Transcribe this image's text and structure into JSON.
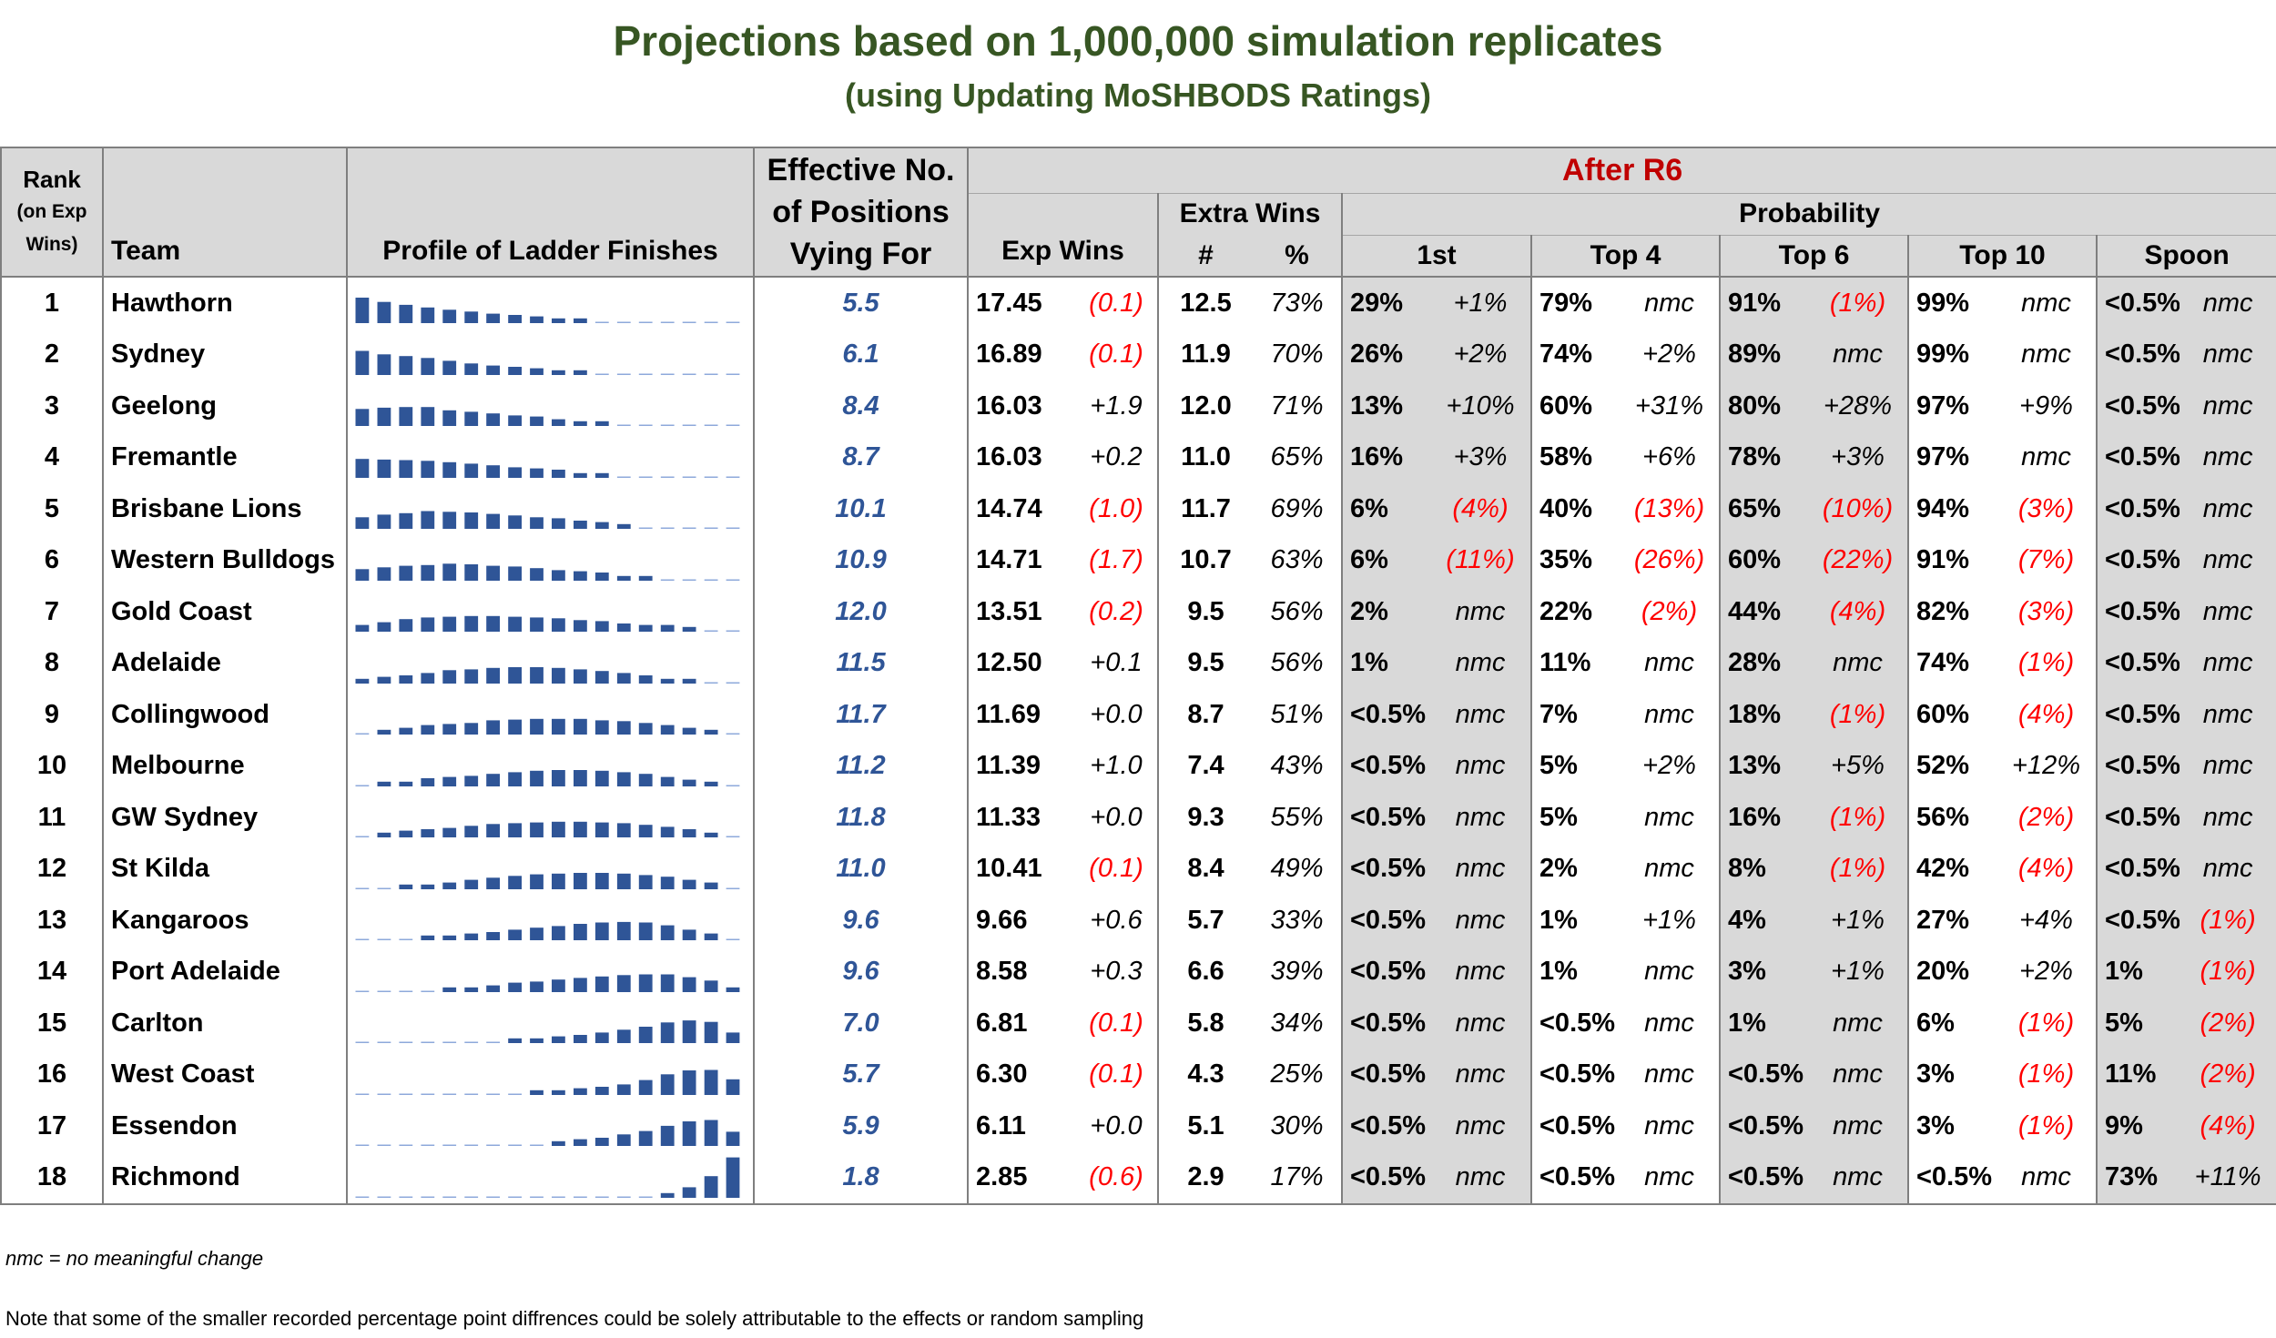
{
  "title": "Projections based on 1,000,000 simulation replicates",
  "subtitle": "(using Updating MoSHBODS Ratings)",
  "header": {
    "rank_line1": "Rank",
    "rank_line2": "(on Exp",
    "rank_line3": "Wins)",
    "team": "Team",
    "profile": "Profile of Ladder Finishes",
    "eff_line1": "Effective No.",
    "eff_line2": "of Positions",
    "eff_line3": "Vying For",
    "after": "After R6",
    "exp_wins": "Exp Wins",
    "extra_wins": "Extra Wins",
    "extra_hash": "#",
    "extra_pct": "%",
    "probability": "Probability",
    "first": "1st",
    "top4": "Top 4",
    "top6": "Top 6",
    "top10": "Top 10",
    "spoon": "Spoon"
  },
  "colors": {
    "title": "#375623",
    "after_label": "#c00000",
    "effective": "#2f5597",
    "negative": "#ff0000",
    "bar": "#2f5597",
    "header_bg": "#d9d9d9"
  },
  "rows": [
    {
      "rank": "1",
      "team": "Hawthorn",
      "eff": "5.5",
      "exp_wins": "17.45",
      "exp_chg": "(0.1)",
      "extra_n": "12.5",
      "extra_pct": "73%",
      "p1": "29%",
      "p1c": "+1%",
      "p4": "79%",
      "p4c": "nmc",
      "p6": "91%",
      "p6c": "(1%)",
      "p10": "99%",
      "p10c": "nmc",
      "sp": "<0.5%",
      "spc": "nmc",
      "profile": [
        0.29,
        0.2,
        0.15,
        0.11,
        0.08,
        0.06,
        0.04,
        0.03,
        0.02,
        0.01,
        0.01,
        0,
        0,
        0,
        0,
        0,
        0,
        0
      ]
    },
    {
      "rank": "2",
      "team": "Sydney",
      "eff": "6.1",
      "exp_wins": "16.89",
      "exp_chg": "(0.1)",
      "extra_n": "11.9",
      "extra_pct": "70%",
      "p1": "26%",
      "p1c": "+2%",
      "p4": "74%",
      "p4c": "+2%",
      "p6": "89%",
      "p6c": "nmc",
      "p10": "99%",
      "p10c": "nmc",
      "sp": "<0.5%",
      "spc": "nmc",
      "profile": [
        0.26,
        0.19,
        0.16,
        0.13,
        0.09,
        0.06,
        0.04,
        0.03,
        0.02,
        0.01,
        0.01,
        0,
        0,
        0,
        0,
        0,
        0,
        0
      ]
    },
    {
      "rank": "3",
      "team": "Geelong",
      "eff": "8.4",
      "exp_wins": "16.03",
      "exp_chg": "+1.9",
      "extra_n": "12.0",
      "extra_pct": "71%",
      "p1": "13%",
      "p1c": "+10%",
      "p4": "60%",
      "p4c": "+31%",
      "p6": "80%",
      "p6c": "+28%",
      "p10": "97%",
      "p10c": "+9%",
      "sp": "<0.5%",
      "spc": "nmc",
      "profile": [
        0.13,
        0.15,
        0.16,
        0.16,
        0.11,
        0.09,
        0.07,
        0.05,
        0.04,
        0.02,
        0.01,
        0.01,
        0,
        0,
        0,
        0,
        0,
        0
      ]
    },
    {
      "rank": "4",
      "team": "Fremantle",
      "eff": "8.7",
      "exp_wins": "16.03",
      "exp_chg": "+0.2",
      "extra_n": "11.0",
      "extra_pct": "65%",
      "p1": "16%",
      "p1c": "+3%",
      "p4": "58%",
      "p4c": "+6%",
      "p6": "78%",
      "p6c": "+3%",
      "p10": "97%",
      "p10c": "nmc",
      "sp": "<0.5%",
      "spc": "nmc",
      "profile": [
        0.16,
        0.15,
        0.14,
        0.13,
        0.11,
        0.09,
        0.07,
        0.05,
        0.04,
        0.03,
        0.01,
        0.01,
        0,
        0,
        0,
        0,
        0,
        0
      ]
    },
    {
      "rank": "5",
      "team": "Brisbane Lions",
      "eff": "10.1",
      "exp_wins": "14.74",
      "exp_chg": "(1.0)",
      "extra_n": "11.7",
      "extra_pct": "69%",
      "p1": "6%",
      "p1c": "(4%)",
      "p4": "40%",
      "p4c": "(13%)",
      "p6": "65%",
      "p6c": "(10%)",
      "p10": "94%",
      "p10c": "(3%)",
      "sp": "<0.5%",
      "spc": "nmc",
      "profile": [
        0.06,
        0.09,
        0.11,
        0.14,
        0.13,
        0.12,
        0.1,
        0.08,
        0.06,
        0.05,
        0.03,
        0.02,
        0.01,
        0,
        0,
        0,
        0,
        0
      ]
    },
    {
      "rank": "6",
      "team": "Western Bulldogs",
      "eff": "10.9",
      "exp_wins": "14.71",
      "exp_chg": "(1.7)",
      "extra_n": "10.7",
      "extra_pct": "63%",
      "p1": "6%",
      "p1c": "(11%)",
      "p4": "35%",
      "p4c": "(26%)",
      "p6": "60%",
      "p6c": "(22%)",
      "p10": "91%",
      "p10c": "(7%)",
      "sp": "<0.5%",
      "spc": "nmc",
      "profile": [
        0.06,
        0.08,
        0.1,
        0.11,
        0.13,
        0.12,
        0.1,
        0.09,
        0.07,
        0.05,
        0.04,
        0.03,
        0.01,
        0.01,
        0,
        0,
        0,
        0
      ]
    },
    {
      "rank": "7",
      "team": "Gold Coast",
      "eff": "12.0",
      "exp_wins": "13.51",
      "exp_chg": "(0.2)",
      "extra_n": "9.5",
      "extra_pct": "56%",
      "p1": "2%",
      "p1c": "nmc",
      "p4": "22%",
      "p4c": "(2%)",
      "p6": "44%",
      "p6c": "(4%)",
      "p10": "82%",
      "p10c": "(3%)",
      "sp": "<0.5%",
      "spc": "nmc",
      "profile": [
        0.02,
        0.04,
        0.07,
        0.09,
        0.1,
        0.11,
        0.11,
        0.1,
        0.09,
        0.08,
        0.06,
        0.05,
        0.03,
        0.02,
        0.02,
        0.01,
        0,
        0
      ]
    },
    {
      "rank": "8",
      "team": "Adelaide",
      "eff": "11.5",
      "exp_wins": "12.50",
      "exp_chg": "+0.1",
      "extra_n": "9.5",
      "extra_pct": "56%",
      "p1": "1%",
      "p1c": "nmc",
      "p4": "11%",
      "p4c": "nmc",
      "p6": "28%",
      "p6c": "nmc",
      "p10": "74%",
      "p10c": "(1%)",
      "sp": "<0.5%",
      "spc": "nmc",
      "profile": [
        0.01,
        0.02,
        0.03,
        0.05,
        0.08,
        0.09,
        0.11,
        0.12,
        0.12,
        0.11,
        0.09,
        0.07,
        0.05,
        0.03,
        0.01,
        0.01,
        0,
        0
      ]
    },
    {
      "rank": "9",
      "team": "Collingwood",
      "eff": "11.7",
      "exp_wins": "11.69",
      "exp_chg": "+0.0",
      "extra_n": "8.7",
      "extra_pct": "51%",
      "p1": "<0.5%",
      "p1c": "nmc",
      "p4": "7%",
      "p4c": "nmc",
      "p6": "18%",
      "p6c": "(1%)",
      "p10": "60%",
      "p10c": "(4%)",
      "sp": "<0.5%",
      "spc": "nmc",
      "profile": [
        0,
        0.01,
        0.02,
        0.04,
        0.05,
        0.06,
        0.09,
        0.1,
        0.11,
        0.11,
        0.11,
        0.09,
        0.08,
        0.06,
        0.04,
        0.02,
        0.01,
        0
      ]
    },
    {
      "rank": "10",
      "team": "Melbourne",
      "eff": "11.2",
      "exp_wins": "11.39",
      "exp_chg": "+1.0",
      "extra_n": "7.4",
      "extra_pct": "43%",
      "p1": "<0.5%",
      "p1c": "nmc",
      "p4": "5%",
      "p4c": "+2%",
      "p6": "13%",
      "p6c": "+5%",
      "p10": "52%",
      "p10c": "+12%",
      "sp": "<0.5%",
      "spc": "nmc",
      "profile": [
        0,
        0.01,
        0.01,
        0.03,
        0.04,
        0.05,
        0.07,
        0.09,
        0.11,
        0.12,
        0.12,
        0.11,
        0.09,
        0.07,
        0.04,
        0.02,
        0.01,
        0
      ]
    },
    {
      "rank": "11",
      "team": "GW Sydney",
      "eff": "11.8",
      "exp_wins": "11.33",
      "exp_chg": "+0.0",
      "extra_n": "9.3",
      "extra_pct": "55%",
      "p1": "<0.5%",
      "p1c": "nmc",
      "p4": "5%",
      "p4c": "nmc",
      "p6": "16%",
      "p6c": "(1%)",
      "p10": "56%",
      "p10c": "(2%)",
      "sp": "<0.5%",
      "spc": "nmc",
      "profile": [
        0,
        0.01,
        0.02,
        0.03,
        0.04,
        0.06,
        0.08,
        0.09,
        0.1,
        0.11,
        0.11,
        0.1,
        0.09,
        0.07,
        0.05,
        0.03,
        0.01,
        0
      ]
    },
    {
      "rank": "12",
      "team": "St Kilda",
      "eff": "11.0",
      "exp_wins": "10.41",
      "exp_chg": "(0.1)",
      "extra_n": "8.4",
      "extra_pct": "49%",
      "p1": "<0.5%",
      "p1c": "nmc",
      "p4": "2%",
      "p4c": "nmc",
      "p6": "8%",
      "p6c": "(1%)",
      "p10": "42%",
      "p10c": "(4%)",
      "sp": "<0.5%",
      "spc": "nmc",
      "profile": [
        0,
        0,
        0.01,
        0.01,
        0.02,
        0.04,
        0.06,
        0.08,
        0.1,
        0.11,
        0.12,
        0.12,
        0.11,
        0.09,
        0.07,
        0.04,
        0.02,
        0
      ]
    },
    {
      "rank": "13",
      "team": "Kangaroos",
      "eff": "9.6",
      "exp_wins": "9.66",
      "exp_chg": "+0.6",
      "extra_n": "5.7",
      "extra_pct": "33%",
      "p1": "<0.5%",
      "p1c": "nmc",
      "p4": "1%",
      "p4c": "+1%",
      "p6": "4%",
      "p6c": "+1%",
      "p10": "27%",
      "p10c": "+4%",
      "sp": "<0.5%",
      "spc": "(1%)",
      "profile": [
        0,
        0,
        0,
        0.01,
        0.01,
        0.02,
        0.03,
        0.05,
        0.07,
        0.09,
        0.12,
        0.14,
        0.15,
        0.14,
        0.1,
        0.05,
        0.02,
        0
      ]
    },
    {
      "rank": "14",
      "team": "Port Adelaide",
      "eff": "9.6",
      "exp_wins": "8.58",
      "exp_chg": "+0.3",
      "extra_n": "6.6",
      "extra_pct": "39%",
      "p1": "<0.5%",
      "p1c": "nmc",
      "p4": "1%",
      "p4c": "nmc",
      "p6": "3%",
      "p6c": "+1%",
      "p10": "20%",
      "p10c": "+2%",
      "sp": "1%",
      "spc": "(1%)",
      "profile": [
        0,
        0,
        0,
        0,
        0.01,
        0.01,
        0.02,
        0.04,
        0.05,
        0.07,
        0.09,
        0.11,
        0.13,
        0.14,
        0.14,
        0.1,
        0.06,
        0.01
      ]
    },
    {
      "rank": "15",
      "team": "Carlton",
      "eff": "7.0",
      "exp_wins": "6.81",
      "exp_chg": "(0.1)",
      "extra_n": "5.8",
      "extra_pct": "34%",
      "p1": "<0.5%",
      "p1c": "nmc",
      "p4": "<0.5%",
      "p4c": "nmc",
      "p6": "1%",
      "p6c": "nmc",
      "p10": "6%",
      "p10c": "(1%)",
      "sp": "5%",
      "spc": "(2%)",
      "profile": [
        0,
        0,
        0,
        0,
        0,
        0,
        0,
        0.01,
        0.01,
        0.02,
        0.03,
        0.05,
        0.08,
        0.12,
        0.19,
        0.23,
        0.2,
        0.05
      ]
    },
    {
      "rank": "16",
      "team": "West Coast",
      "eff": "5.7",
      "exp_wins": "6.30",
      "exp_chg": "(0.1)",
      "extra_n": "4.3",
      "extra_pct": "25%",
      "p1": "<0.5%",
      "p1c": "nmc",
      "p4": "<0.5%",
      "p4c": "nmc",
      "p6": "<0.5%",
      "p6c": "nmc",
      "p10": "3%",
      "p10c": "(1%)",
      "sp": "11%",
      "spc": "(2%)",
      "profile": [
        0,
        0,
        0,
        0,
        0,
        0,
        0,
        0,
        0.01,
        0.01,
        0.02,
        0.03,
        0.05,
        0.1,
        0.19,
        0.27,
        0.28,
        0.11
      ]
    },
    {
      "rank": "17",
      "team": "Essendon",
      "eff": "5.9",
      "exp_wins": "6.11",
      "exp_chg": "+0.0",
      "extra_n": "5.1",
      "extra_pct": "30%",
      "p1": "<0.5%",
      "p1c": "nmc",
      "p4": "<0.5%",
      "p4c": "nmc",
      "p6": "<0.5%",
      "p6c": "nmc",
      "p10": "3%",
      "p10c": "(1%)",
      "sp": "9%",
      "spc": "(4%)",
      "profile": [
        0,
        0,
        0,
        0,
        0,
        0,
        0,
        0,
        0,
        0.01,
        0.02,
        0.03,
        0.06,
        0.1,
        0.18,
        0.27,
        0.3,
        0.09
      ]
    },
    {
      "rank": "18",
      "team": "Richmond",
      "eff": "1.8",
      "exp_wins": "2.85",
      "exp_chg": "(0.6)",
      "extra_n": "2.9",
      "extra_pct": "17%",
      "p1": "<0.5%",
      "p1c": "nmc",
      "p4": "<0.5%",
      "p4c": "nmc",
      "p6": "<0.5%",
      "p6c": "nmc",
      "p10": "<0.5%",
      "p10c": "nmc",
      "sp": "73%",
      "spc": "+11%",
      "profile": [
        0,
        0,
        0,
        0,
        0,
        0,
        0,
        0,
        0,
        0,
        0,
        0,
        0,
        0,
        0.01,
        0.05,
        0.21,
        0.73
      ]
    }
  ],
  "footer": {
    "nmc_note": "nmc = no meaningful change",
    "sampling_note": "Note that some of the smaller recorded percentage point diffrences could be solely attributable to the effects or random sampling"
  }
}
